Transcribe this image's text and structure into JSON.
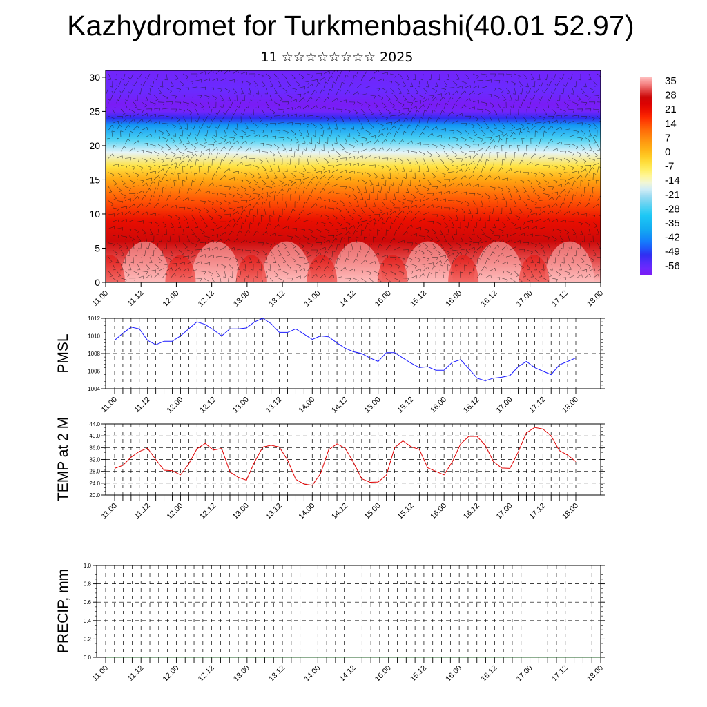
{
  "header": {
    "title": "Kazhydromet for Turkmenbashi(40.01 52.97)",
    "subtitle": "11 ☆☆☆☆☆☆☆☆ 2025"
  },
  "time_labels": [
    "11.00",
    "11.12",
    "12.00",
    "12.12",
    "13.00",
    "13.12",
    "14.00",
    "14.12",
    "15.00",
    "15.12",
    "16.00",
    "16.12",
    "17.00",
    "17.12",
    "18.00"
  ],
  "colorbar": {
    "labels": [
      "35",
      "28",
      "21",
      "14",
      "7",
      "0",
      "-7",
      "-14",
      "-21",
      "-28",
      "-35",
      "-42",
      "-49",
      "-56"
    ]
  },
  "chart_data": [
    {
      "type": "heatmap",
      "name": "cross-section",
      "x_labels": [
        "11.00",
        "11.12",
        "12.00",
        "12.12",
        "13.00",
        "13.12",
        "14.00",
        "14.12",
        "15.00",
        "15.12",
        "16.00",
        "16.12",
        "17.00",
        "17.12",
        "18.00"
      ],
      "y_ticks": [
        0,
        5,
        10,
        15,
        20,
        25,
        30
      ],
      "ylim": [
        0,
        31
      ],
      "colorbar_range": [
        -60,
        38
      ],
      "vertical_profile": {
        "levels": [
          0,
          3,
          6,
          9,
          12,
          15,
          17,
          19,
          21,
          23,
          24,
          25,
          26,
          28,
          31
        ],
        "temperature": [
          38,
          32,
          28,
          22,
          14,
          4,
          -5,
          -16,
          -27,
          -40,
          -50,
          -58,
          -60,
          -56,
          -58
        ]
      },
      "diurnal_amplitude_near_surface": 6,
      "overlay": "wind barbs"
    },
    {
      "type": "line",
      "ylabel": "PMSL",
      "ylim": [
        1004,
        1012
      ],
      "y_ticks": [
        "1004",
        "1006",
        "1008",
        "1010",
        "1012"
      ],
      "x_labels": [
        "11.00",
        "11.12",
        "12.00",
        "12.12",
        "13.00",
        "13.12",
        "14.00",
        "14.12",
        "15.00",
        "15.12",
        "16.00",
        "16.12",
        "17.00",
        "17.12",
        "18.00"
      ],
      "step_hours": 3,
      "color": "#1a1aff",
      "values": [
        1009.5,
        1010.3,
        1011.0,
        1010.8,
        1009.5,
        1009.0,
        1009.4,
        1009.4,
        1010.0,
        1010.8,
        1011.6,
        1011.3,
        1010.7,
        1010.0,
        1010.8,
        1010.8,
        1010.9,
        1011.6,
        1012.0,
        1011.4,
        1010.4,
        1010.4,
        1010.8,
        1010.2,
        1009.6,
        1010.0,
        1009.9,
        1009.2,
        1008.6,
        1008.2,
        1008.0,
        1007.5,
        1007.1,
        1008.1,
        1008.1,
        1007.5,
        1006.9,
        1006.4,
        1006.5,
        1006.1,
        1006.1,
        1007.0,
        1007.3,
        1006.3,
        1005.2,
        1004.9,
        1005.2,
        1005.3,
        1005.5,
        1006.5,
        1007.1,
        1006.4,
        1006.0,
        1005.6,
        1006.7,
        1007.1,
        1007.5
      ]
    },
    {
      "type": "line",
      "ylabel": "TEMP at 2 M",
      "ylim": [
        20,
        44
      ],
      "y_ticks": [
        "20.0",
        "24.0",
        "28.0",
        "32.0",
        "36.0",
        "40.0",
        "44.0"
      ],
      "x_labels": [
        "11.00",
        "11.12",
        "12.00",
        "12.12",
        "13.00",
        "13.12",
        "14.00",
        "14.12",
        "15.00",
        "15.12",
        "16.00",
        "16.12",
        "17.00",
        "17.12",
        "18.00"
      ],
      "step_hours": 3,
      "color": "#e00000",
      "values": [
        29.0,
        30.0,
        32.8,
        34.7,
        35.8,
        32.0,
        28.4,
        28.2,
        26.8,
        30.5,
        35.6,
        37.4,
        35.2,
        35.7,
        27.8,
        26.0,
        25.0,
        31.2,
        36.2,
        36.8,
        36.2,
        31.8,
        25.3,
        23.7,
        23.3,
        27.2,
        35.3,
        37.3,
        35.8,
        31.0,
        25.5,
        24.3,
        24.4,
        26.7,
        36.0,
        38.3,
        36.3,
        35.4,
        29.2,
        28.0,
        26.8,
        31.2,
        37.2,
        39.8,
        39.8,
        36.8,
        31.3,
        29.1,
        29.0,
        34.5,
        41.0,
        42.8,
        42.3,
        40.0,
        35.0,
        33.5,
        31.3
      ]
    },
    {
      "type": "line",
      "ylabel": "PRECIP, mm",
      "ylim": [
        0,
        1
      ],
      "y_ticks": [
        "0.0",
        "0.2",
        "0.4",
        "0.6",
        "0.8",
        "1.0"
      ],
      "x_labels": [
        "11.00",
        "11.12",
        "12.00",
        "12.12",
        "13.00",
        "13.12",
        "14.00",
        "14.12",
        "15.00",
        "15.12",
        "16.00",
        "16.12",
        "17.00",
        "17.12",
        "18.00"
      ],
      "step_hours": 3,
      "color": "#1b5e20",
      "values": [
        0,
        0,
        0,
        0,
        0,
        0,
        0,
        0,
        0,
        0,
        0,
        0,
        0,
        0,
        0,
        0,
        0,
        0,
        0,
        0,
        0,
        0,
        0,
        0,
        0,
        0,
        0,
        0,
        0,
        0,
        0,
        0,
        0,
        0,
        0,
        0,
        0,
        0,
        0,
        0,
        0,
        0,
        0,
        0,
        0,
        0,
        0,
        0,
        0,
        0,
        0,
        0,
        0,
        0,
        0,
        0,
        0
      ]
    }
  ]
}
